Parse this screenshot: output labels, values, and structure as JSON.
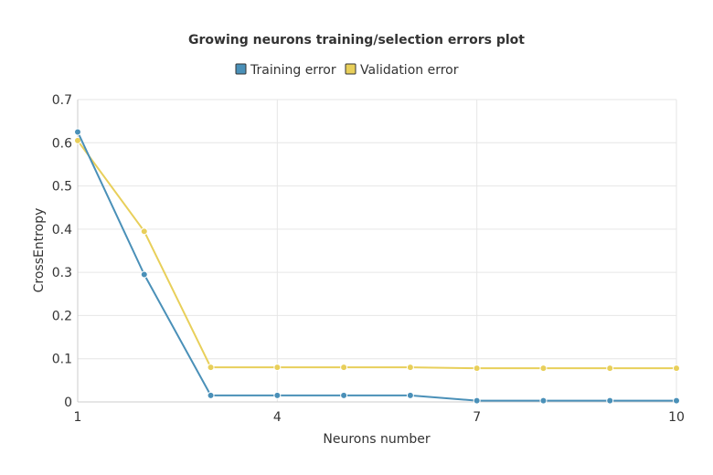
{
  "chart_data": {
    "type": "line",
    "title": "Growing neurons training/selection errors plot",
    "xlabel": "Neurons number",
    "ylabel": "CrossEntropy",
    "x": [
      1,
      2,
      3,
      4,
      5,
      6,
      7,
      8,
      9,
      10
    ],
    "xticks": [
      1,
      4,
      7,
      10
    ],
    "yticks": [
      0,
      0.1,
      0.2,
      0.3,
      0.4,
      0.5,
      0.6,
      0.7
    ],
    "xlim": [
      1,
      10
    ],
    "ylim": [
      0,
      0.7
    ],
    "grid": true,
    "legend_position": "top-center",
    "series": [
      {
        "name": "Training error",
        "color": "#4a90b8",
        "values": [
          0.625,
          0.295,
          0.015,
          0.015,
          0.015,
          0.015,
          0.003,
          0.003,
          0.003,
          0.003
        ]
      },
      {
        "name": "Validation error",
        "color": "#e8cf5a",
        "values": [
          0.605,
          0.395,
          0.08,
          0.08,
          0.08,
          0.08,
          0.078,
          0.078,
          0.078,
          0.078
        ]
      }
    ]
  }
}
